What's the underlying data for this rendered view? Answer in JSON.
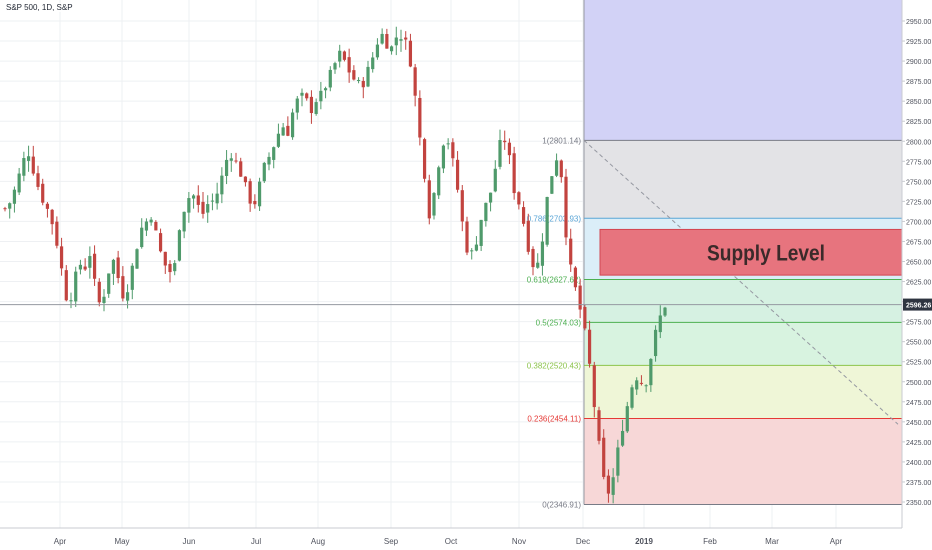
{
  "header": {
    "symbol_label": "S&P 500, 1D, S&P"
  },
  "price_axis": {
    "ticks": [
      2350,
      2375,
      2400,
      2425,
      2450,
      2475,
      2500,
      2525,
      2550,
      2575,
      2600,
      2625,
      2650,
      2675,
      2700,
      2725,
      2750,
      2775,
      2800,
      2825,
      2850,
      2875,
      2900,
      2925,
      2950
    ],
    "tick_labels": [
      "2350.00",
      "2375.00",
      "2400.00",
      "2425.00",
      "2450.00",
      "2475.00",
      "2500.00",
      "2525.00",
      "2550.00",
      "2575.00",
      "2600.00",
      "2625.00",
      "2650.00",
      "2675.00",
      "2700.00",
      "2725.00",
      "2750.00",
      "2775.00",
      "2800.00",
      "2825.00",
      "2850.00",
      "2875.00",
      "2900.00",
      "2925.00",
      "2950.00"
    ],
    "last_price_label": "2596.26",
    "last_price": 2596.26,
    "last_price_color": "#2e3440"
  },
  "time_axis": {
    "labels": [
      "Apr",
      "May",
      "Jun",
      "Jul",
      "Aug",
      "Sep",
      "Oct",
      "Nov",
      "Dec",
      "2019",
      "Feb",
      "Mar",
      "Apr"
    ]
  },
  "fibonacci": {
    "levels": [
      {
        "ratio": "1",
        "price": 2801.14,
        "label": "1(2801.14)",
        "color": "#787b86",
        "fill": "#e3e3e6"
      },
      {
        "ratio": "0.786",
        "price": 2703.93,
        "label": "0.786(2703.93)",
        "color": "#5aa5d6",
        "fill": "#dbeef8"
      },
      {
        "ratio": "0.618",
        "price": 2627.62,
        "label": "0.618(2627.62)",
        "color": "#4caf50",
        "fill": "#d6f1e2"
      },
      {
        "ratio": "0.5",
        "price": 2574.03,
        "label": "0.5(2574.03)",
        "color": "#4caf50",
        "fill": "#d8f3e0"
      },
      {
        "ratio": "0.382",
        "price": 2520.43,
        "label": "0.382(2520.43)",
        "color": "#8bc34a",
        "fill": "#eff6d7"
      },
      {
        "ratio": "0.236",
        "price": 2454.11,
        "label": "0.236(2454.11)",
        "color": "#e53935",
        "fill": "#f7d7d7"
      },
      {
        "ratio": "0",
        "price": 2346.91,
        "label": "0(2346.91)",
        "color": "#787b86",
        "fill": ""
      }
    ],
    "upper_zone_color": "#d0d0f5"
  },
  "supply_zone": {
    "label": "Supply Level",
    "top": 2690,
    "bottom": 2633,
    "color": "#e7747e",
    "border": "#d24651"
  },
  "colors": {
    "up": "#4f9a6b",
    "down": "#c2433f",
    "grid": "#eef0f3",
    "axis_text": "#50535e"
  },
  "chart_data": {
    "type": "candlestick",
    "title": "S&P 500, 1D, S&P",
    "ylim": [
      2335,
      2965
    ],
    "x_months": [
      "Apr",
      "May",
      "Jun",
      "Jul",
      "Aug",
      "Sep",
      "Oct",
      "Nov",
      "Dec",
      "2019",
      "Feb",
      "Mar",
      "Apr"
    ],
    "close_path": [
      [
        0,
        2716
      ],
      [
        3,
        2725
      ],
      [
        6,
        2745
      ],
      [
        9,
        2770
      ],
      [
        12,
        2790
      ],
      [
        15,
        2765
      ],
      [
        18,
        2740
      ],
      [
        21,
        2722
      ],
      [
        24,
        2708
      ],
      [
        27,
        2680
      ],
      [
        30,
        2640
      ],
      [
        33,
        2600
      ],
      [
        36,
        2612
      ],
      [
        39,
        2650
      ],
      [
        42,
        2640
      ],
      [
        45,
        2660
      ],
      [
        48,
        2615
      ],
      [
        51,
        2590
      ],
      [
        54,
        2630
      ],
      [
        57,
        2655
      ],
      [
        60,
        2630
      ],
      [
        63,
        2605
      ],
      [
        66,
        2625
      ],
      [
        69,
        2660
      ],
      [
        72,
        2690
      ],
      [
        75,
        2700
      ],
      [
        78,
        2710
      ],
      [
        81,
        2672
      ],
      [
        84,
        2650
      ],
      [
        87,
        2636
      ],
      [
        90,
        2645
      ],
      [
        93,
        2705
      ],
      [
        96,
        2722
      ],
      [
        99,
        2738
      ],
      [
        102,
        2720
      ],
      [
        105,
        2710
      ],
      [
        108,
        2724
      ],
      [
        111,
        2726
      ],
      [
        114,
        2745
      ],
      [
        117,
        2775
      ],
      [
        120,
        2785
      ],
      [
        123,
        2770
      ],
      [
        126,
        2755
      ],
      [
        129,
        2730
      ],
      [
        132,
        2720
      ],
      [
        135,
        2745
      ],
      [
        138,
        2772
      ],
      [
        141,
        2785
      ],
      [
        144,
        2805
      ],
      [
        147,
        2820
      ],
      [
        150,
        2812
      ],
      [
        153,
        2840
      ],
      [
        156,
        2855
      ],
      [
        159,
        2855
      ],
      [
        162,
        2838
      ],
      [
        165,
        2852
      ],
      [
        168,
        2858
      ],
      [
        171,
        2875
      ],
      [
        174,
        2890
      ],
      [
        177,
        2910
      ],
      [
        180,
        2900
      ],
      [
        183,
        2885
      ],
      [
        186,
        2874
      ],
      [
        189,
        2868
      ],
      [
        192,
        2885
      ],
      [
        195,
        2905
      ],
      [
        198,
        2928
      ],
      [
        201,
        2935
      ],
      [
        204,
        2910
      ],
      [
        207,
        2930
      ],
      [
        210,
        2932
      ],
      [
        213,
        2920
      ],
      [
        216,
        2890
      ],
      [
        219,
        2820
      ],
      [
        222,
        2770
      ],
      [
        225,
        2710
      ],
      [
        228,
        2740
      ],
      [
        231,
        2790
      ],
      [
        234,
        2810
      ],
      [
        237,
        2780
      ],
      [
        240,
        2740
      ],
      [
        243,
        2690
      ],
      [
        246,
        2655
      ],
      [
        249,
        2665
      ],
      [
        252,
        2700
      ],
      [
        255,
        2720
      ],
      [
        258,
        2740
      ],
      [
        261,
        2780
      ],
      [
        264,
        2810
      ],
      [
        267,
        2785
      ],
      [
        270,
        2740
      ],
      [
        273,
        2720
      ],
      [
        276,
        2688
      ],
      [
        279,
        2650
      ],
      [
        282,
        2640
      ],
      [
        285,
        2680
      ],
      [
        288,
        2738
      ],
      [
        291,
        2770
      ],
      [
        294,
        2790
      ],
      [
        297,
        2696
      ],
      [
        300,
        2640
      ],
      [
        303,
        2610
      ],
      [
        306,
        2580
      ],
      [
        309,
        2540
      ],
      [
        312,
        2480
      ],
      [
        315,
        2420
      ],
      [
        318,
        2368
      ],
      [
        321,
        2360
      ],
      [
        324,
        2400
      ],
      [
        327,
        2440
      ],
      [
        330,
        2470
      ],
      [
        333,
        2500
      ],
      [
        336,
        2510
      ],
      [
        339,
        2490
      ],
      [
        342,
        2525
      ],
      [
        345,
        2560
      ],
      [
        348,
        2585
      ],
      [
        350,
        2596
      ]
    ],
    "x_range": [
      0,
      370
    ]
  }
}
